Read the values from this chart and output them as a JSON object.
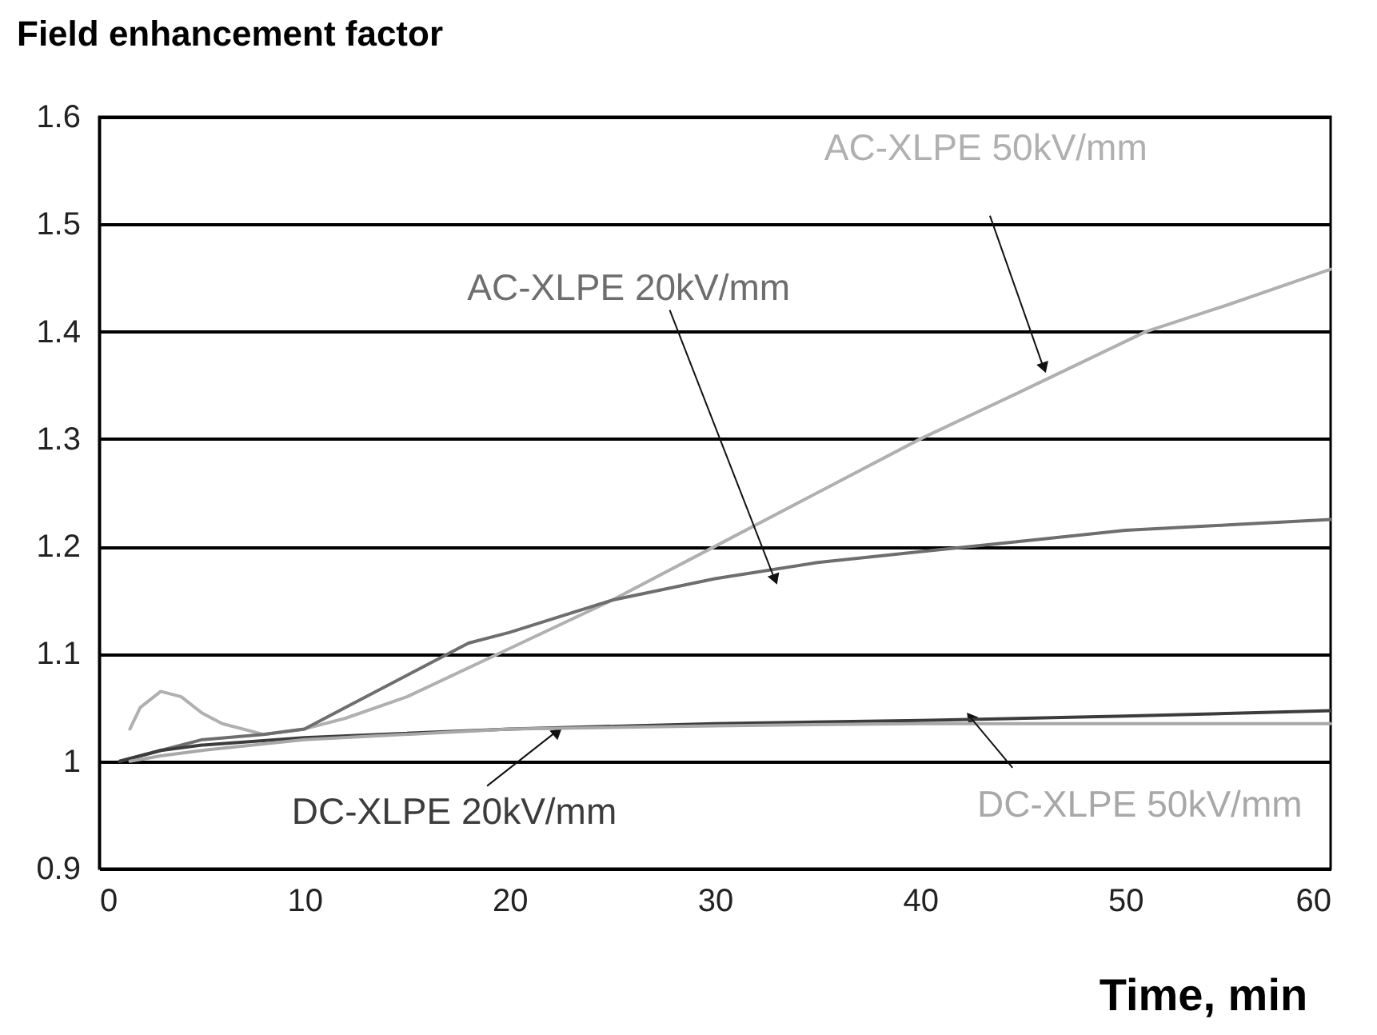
{
  "chart_data": {
    "type": "line",
    "ylabel": "Field enhancement factor",
    "xlabel": "Time, min",
    "xlim": [
      0,
      60
    ],
    "xticks": [
      0,
      10,
      20,
      30,
      40,
      50,
      60
    ],
    "ylim": [
      0.9,
      1.6
    ],
    "yticks": [
      0.9,
      1,
      1.1,
      1.2,
      1.3,
      1.4,
      1.5,
      1.6
    ],
    "grid": "y",
    "legend": false,
    "line_style": "solid",
    "marker": "none",
    "series": [
      {
        "name": "AC-XLPE 50kV/mm",
        "color": "#b0b0b0",
        "x": [
          1.5,
          2,
          3,
          4,
          5,
          6,
          8,
          10,
          12,
          15,
          20,
          25,
          30,
          35,
          40,
          45,
          51,
          55,
          60
        ],
        "values": [
          1.03,
          1.05,
          1.065,
          1.06,
          1.045,
          1.035,
          1.025,
          1.03,
          1.04,
          1.06,
          1.105,
          1.15,
          1.2,
          1.25,
          1.3,
          1.345,
          1.4,
          1.425,
          1.458
        ]
      },
      {
        "name": "AC-XLPE 20kV/mm",
        "color": "#6e6e6e",
        "x": [
          1,
          3,
          5,
          8,
          10,
          12,
          15,
          18,
          20,
          25,
          30,
          35,
          40,
          45,
          50,
          55,
          60
        ],
        "values": [
          1.0,
          1.01,
          1.02,
          1.025,
          1.03,
          1.05,
          1.08,
          1.11,
          1.12,
          1.15,
          1.17,
          1.185,
          1.195,
          1.205,
          1.215,
          1.22,
          1.225
        ]
      },
      {
        "name": "DC-XLPE 20kV/mm",
        "color": "#3c3c3c",
        "x": [
          1,
          3,
          5,
          10,
          20,
          30,
          40,
          50,
          60
        ],
        "values": [
          1.0,
          1.01,
          1.015,
          1.022,
          1.03,
          1.035,
          1.038,
          1.042,
          1.047
        ]
      },
      {
        "name": "DC-XLPE 50kV/mm",
        "color": "#a8a8a8",
        "x": [
          1.5,
          3,
          5,
          10,
          20,
          30,
          40,
          50,
          60
        ],
        "values": [
          1.0,
          1.005,
          1.01,
          1.02,
          1.03,
          1.033,
          1.035,
          1.035,
          1.035
        ]
      }
    ]
  }
}
